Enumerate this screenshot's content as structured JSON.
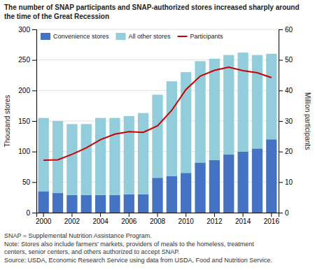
{
  "chart_data": {
    "type": "bar",
    "title": [
      "The number of SNAP participants and SNAP-authorized stores increased sharply around",
      "the time of the Great Recession"
    ],
    "categories": [
      2000,
      null,
      2002,
      null,
      2004,
      null,
      2006,
      null,
      2008,
      null,
      2010,
      null,
      2012,
      null,
      2014,
      null,
      2016
    ],
    "series": [
      {
        "name": "Convenience stores",
        "type": "bar",
        "color": "#4472C4",
        "values": [
          35,
          32,
          29,
          29,
          29,
          29,
          30,
          30,
          57,
          60,
          65,
          82,
          86,
          95,
          100,
          105,
          120
        ]
      },
      {
        "name": "All other stores",
        "type": "bar",
        "color": "#92CDDC",
        "values": [
          120,
          118,
          116,
          116,
          126,
          126,
          128,
          133,
          136,
          155,
          165,
          166,
          166,
          163,
          162,
          153,
          140
        ]
      },
      {
        "name": "Participants",
        "type": "line",
        "axis": "y2",
        "color": "#CC0000",
        "values": [
          17.2,
          17.3,
          19.1,
          21.2,
          23.9,
          25.7,
          26.5,
          26.3,
          28.4,
          33.5,
          40.3,
          44.7,
          46.6,
          47.6,
          46.5,
          45.8,
          44.2
        ]
      }
    ],
    "stacked": true,
    "ylabel": "Thousand stores",
    "y2label": "Million participants",
    "ylim": [
      0,
      300
    ],
    "yticks": [
      0,
      50,
      100,
      150,
      200,
      250,
      300
    ],
    "y2lim": [
      0,
      60
    ],
    "y2ticks": [
      0,
      10,
      20,
      30,
      40,
      50,
      60
    ],
    "grid": true,
    "legend": "top-left",
    "annotations": [
      "SNAP = Supplemental Nutrition Assistance Program.",
      "Note: Stores also include farmers’ markets, providers of meals to the homeless, treatment",
      "centers, senior centers, and others authorized to accept SNAP.",
      "Source: USDA, Economic Research Service using data from USDA, Food and Nutrition Service."
    ]
  }
}
